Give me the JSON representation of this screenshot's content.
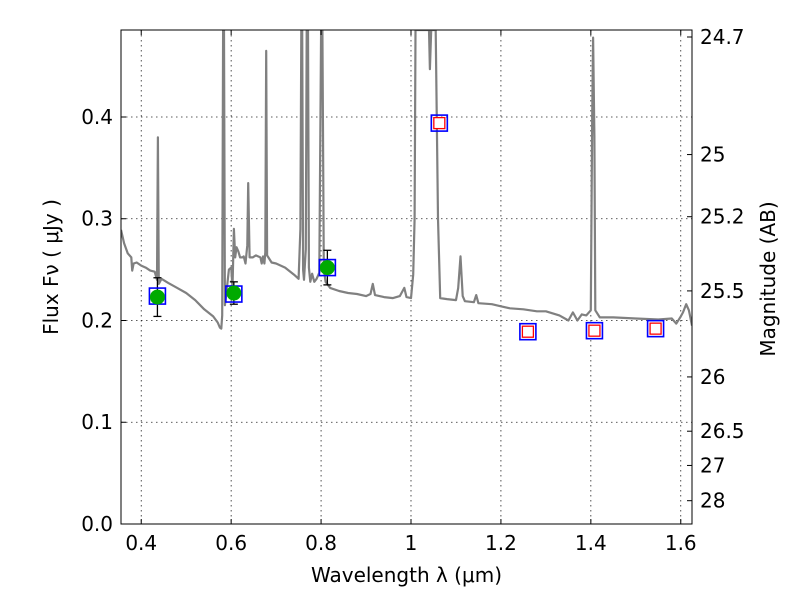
{
  "chart_data": {
    "type": "scatter",
    "title": "",
    "xlabel": "Wavelength  λ (μm)",
    "ylabel": "Flux  Fν  ( μJy )",
    "ylabel_right": "Magnitude (AB)",
    "xlim": [
      0.355,
      1.625
    ],
    "ylim": [
      0.0,
      0.4855
    ],
    "xticks": [
      0.4,
      0.6,
      0.8,
      1.0,
      1.2,
      1.4,
      1.6
    ],
    "xtick_labels": [
      "0.4",
      "0.6",
      "0.8",
      "1",
      "1.2",
      "1.4",
      "1.6"
    ],
    "yticks": [
      0.0,
      0.1,
      0.2,
      0.3,
      0.4
    ],
    "ytick_labels": [
      "0.0",
      "0.1",
      "0.2",
      "0.3",
      "0.4"
    ],
    "right_ticks": [
      {
        "label": "24.7",
        "mag": 24.7
      },
      {
        "label": "25",
        "mag": 25.0
      },
      {
        "label": "25.2",
        "mag": 25.2
      },
      {
        "label": "25.5",
        "mag": 25.5
      },
      {
        "label": "26",
        "mag": 26.0
      },
      {
        "label": "26.5",
        "mag": 26.5
      },
      {
        "label": "27",
        "mag": 27.0
      },
      {
        "label": "28",
        "mag": 28.0
      }
    ],
    "grid": true,
    "colors": {
      "spectrum": "#808080",
      "model_box": "#0000ff",
      "upper_box": "#ff0000",
      "observed_point": "#00aa00",
      "error_bar": "#000000"
    },
    "series": [
      {
        "kind": "spectrum",
        "points": [
          [
            0.355,
            0.289
          ],
          [
            0.362,
            0.276
          ],
          [
            0.37,
            0.266
          ],
          [
            0.378,
            0.262
          ],
          [
            0.38,
            0.249
          ],
          [
            0.383,
            0.256
          ],
          [
            0.39,
            0.257
          ],
          [
            0.4,
            0.254
          ],
          [
            0.41,
            0.252
          ],
          [
            0.42,
            0.249
          ],
          [
            0.43,
            0.248
          ],
          [
            0.435,
            0.24
          ],
          [
            0.437,
            0.38
          ],
          [
            0.439,
            0.236
          ],
          [
            0.445,
            0.241
          ],
          [
            0.46,
            0.237
          ],
          [
            0.48,
            0.232
          ],
          [
            0.5,
            0.227
          ],
          [
            0.52,
            0.22
          ],
          [
            0.54,
            0.211
          ],
          [
            0.56,
            0.204
          ],
          [
            0.57,
            0.198
          ],
          [
            0.575,
            0.193
          ],
          [
            0.578,
            0.192
          ],
          [
            0.58,
            0.205
          ],
          [
            0.582,
            0.4855
          ],
          [
            0.584,
            0.4855
          ],
          [
            0.586,
            0.215
          ],
          [
            0.59,
            0.23
          ],
          [
            0.595,
            0.25
          ],
          [
            0.6,
            0.252
          ],
          [
            0.603,
            0.232
          ],
          [
            0.606,
            0.29
          ],
          [
            0.609,
            0.262
          ],
          [
            0.612,
            0.272
          ],
          [
            0.616,
            0.268
          ],
          [
            0.62,
            0.262
          ],
          [
            0.625,
            0.262
          ],
          [
            0.628,
            0.263
          ],
          [
            0.632,
            0.256
          ],
          [
            0.636,
            0.274
          ],
          [
            0.638,
            0.335
          ],
          [
            0.641,
            0.262
          ],
          [
            0.648,
            0.262
          ],
          [
            0.655,
            0.264
          ],
          [
            0.66,
            0.263
          ],
          [
            0.665,
            0.262
          ],
          [
            0.668,
            0.256
          ],
          [
            0.671,
            0.263
          ],
          [
            0.674,
            0.256
          ],
          [
            0.676,
            0.267
          ],
          [
            0.678,
            0.465
          ],
          [
            0.68,
            0.264
          ],
          [
            0.69,
            0.257
          ],
          [
            0.7,
            0.256
          ],
          [
            0.72,
            0.252
          ],
          [
            0.74,
            0.245
          ],
          [
            0.75,
            0.241
          ],
          [
            0.754,
            0.29
          ],
          [
            0.756,
            0.4855
          ],
          [
            0.758,
            0.4855
          ],
          [
            0.76,
            0.25
          ],
          [
            0.762,
            0.24
          ],
          [
            0.766,
            0.27
          ],
          [
            0.768,
            0.4855
          ],
          [
            0.771,
            0.4855
          ],
          [
            0.773,
            0.252
          ],
          [
            0.776,
            0.238
          ],
          [
            0.78,
            0.246
          ],
          [
            0.785,
            0.238
          ],
          [
            0.79,
            0.241
          ],
          [
            0.796,
            0.247
          ],
          [
            0.8,
            0.4855
          ],
          [
            0.803,
            0.4855
          ],
          [
            0.806,
            0.25
          ],
          [
            0.81,
            0.238
          ],
          [
            0.82,
            0.232
          ],
          [
            0.84,
            0.229
          ],
          [
            0.86,
            0.227
          ],
          [
            0.88,
            0.226
          ],
          [
            0.9,
            0.224
          ],
          [
            0.91,
            0.226
          ],
          [
            0.915,
            0.236
          ],
          [
            0.92,
            0.225
          ],
          [
            0.94,
            0.223
          ],
          [
            0.96,
            0.222
          ],
          [
            0.975,
            0.224
          ],
          [
            0.985,
            0.232
          ],
          [
            0.99,
            0.223
          ],
          [
            1.0,
            0.222
          ],
          [
            1.005,
            0.245
          ],
          [
            1.008,
            0.3
          ],
          [
            1.01,
            0.4855
          ],
          [
            1.04,
            0.4855
          ],
          [
            1.042,
            0.447
          ],
          [
            1.045,
            0.4855
          ],
          [
            1.055,
            0.4855
          ],
          [
            1.06,
            0.3
          ],
          [
            1.065,
            0.222
          ],
          [
            1.08,
            0.221
          ],
          [
            1.1,
            0.22
          ],
          [
            1.105,
            0.232
          ],
          [
            1.11,
            0.263
          ],
          [
            1.115,
            0.224
          ],
          [
            1.12,
            0.219
          ],
          [
            1.14,
            0.218
          ],
          [
            1.145,
            0.225
          ],
          [
            1.15,
            0.217
          ],
          [
            1.18,
            0.216
          ],
          [
            1.2,
            0.214
          ],
          [
            1.22,
            0.212
          ],
          [
            1.25,
            0.211
          ],
          [
            1.28,
            0.209
          ],
          [
            1.3,
            0.209
          ],
          [
            1.33,
            0.205
          ],
          [
            1.35,
            0.2
          ],
          [
            1.36,
            0.208
          ],
          [
            1.37,
            0.2
          ],
          [
            1.38,
            0.206
          ],
          [
            1.39,
            0.205
          ],
          [
            1.4,
            0.21
          ],
          [
            1.403,
            0.4
          ],
          [
            1.405,
            0.478
          ],
          [
            1.408,
            0.38
          ],
          [
            1.41,
            0.21
          ],
          [
            1.42,
            0.203
          ],
          [
            1.45,
            0.203
          ],
          [
            1.5,
            0.202
          ],
          [
            1.55,
            0.201
          ],
          [
            1.58,
            0.202
          ],
          [
            1.59,
            0.197
          ],
          [
            1.6,
            0.204
          ],
          [
            1.605,
            0.208
          ],
          [
            1.612,
            0.216
          ],
          [
            1.618,
            0.21
          ],
          [
            1.625,
            0.195
          ]
        ]
      },
      {
        "kind": "model_photometry",
        "points": [
          {
            "x": 0.436,
            "y": 0.224
          },
          {
            "x": 0.606,
            "y": 0.226
          },
          {
            "x": 0.814,
            "y": 0.252
          },
          {
            "x": 1.063,
            "y": 0.394
          },
          {
            "x": 1.26,
            "y": 0.189
          },
          {
            "x": 1.408,
            "y": 0.19
          },
          {
            "x": 1.544,
            "y": 0.192
          }
        ]
      },
      {
        "kind": "undetected",
        "points": [
          {
            "x": 1.063,
            "y": 0.394
          },
          {
            "x": 1.26,
            "y": 0.189
          },
          {
            "x": 1.408,
            "y": 0.19
          },
          {
            "x": 1.544,
            "y": 0.192
          }
        ]
      },
      {
        "kind": "observed",
        "points": [
          {
            "x": 0.436,
            "y": 0.223,
            "err": 0.019
          },
          {
            "x": 0.606,
            "y": 0.227,
            "err": 0.011
          },
          {
            "x": 0.814,
            "y": 0.252,
            "err": 0.017
          }
        ]
      }
    ]
  }
}
